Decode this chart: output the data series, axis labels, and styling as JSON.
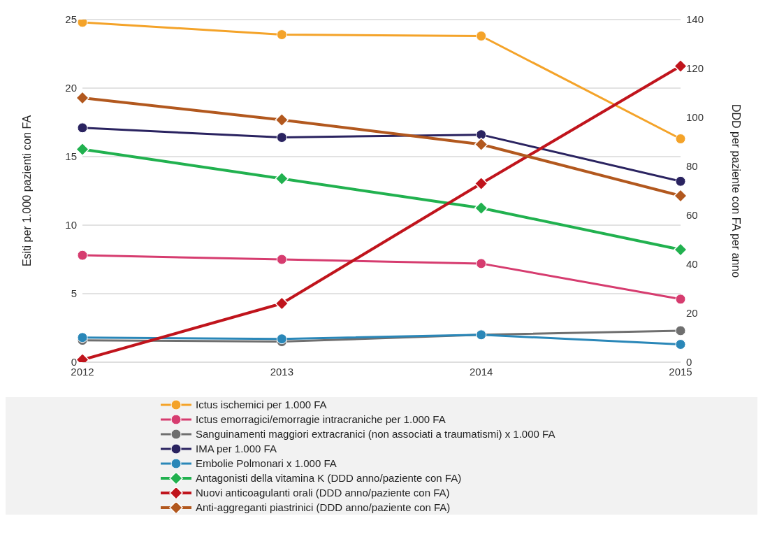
{
  "chart_data": {
    "type": "line",
    "ylabel": "Esiti per 1.000 pazienti con FA",
    "y2label": "DDD per paziente con FA per anno",
    "categories": [
      "2012",
      "2013",
      "2014",
      "2015"
    ],
    "ylim": [
      0,
      25
    ],
    "yticks": [
      0,
      5,
      10,
      15,
      20,
      25
    ],
    "y2lim": [
      0,
      140
    ],
    "y2ticks": [
      0,
      20,
      40,
      60,
      80,
      100,
      120,
      140
    ],
    "grid": "y",
    "legend": "bottom",
    "line_style": "solid",
    "series": [
      {
        "name": "Ictus ischemici per 1.000 FA",
        "color": "#f4a329",
        "marker": "circle",
        "values": [
          24.8,
          23.9,
          23.8,
          16.3
        ]
      },
      {
        "name": "Ictus emorragici/emorragie intracraniche per 1.000 FA",
        "color": "#d63c6f",
        "marker": "circle",
        "values": [
          7.8,
          7.5,
          7.2,
          4.6
        ]
      },
      {
        "name": "Sanguinamenti maggiori extracranici (non associati a traumatismi) x 1.000 FA",
        "color": "#6f6f6f",
        "marker": "circle",
        "values": [
          1.6,
          1.5,
          2.0,
          2.3
        ]
      },
      {
        "name": "IMA per 1.000 FA",
        "color": "#2a2360",
        "marker": "circle",
        "values": [
          17.1,
          16.4,
          16.6,
          13.2
        ]
      },
      {
        "name": "Embolie Polmonari x 1.000 FA",
        "color": "#2a87b8",
        "marker": "circle",
        "values": [
          1.8,
          1.7,
          2.0,
          1.3
        ]
      },
      {
        "name": "Antagonisti della vitamina K (DDD anno/paziente con FA)",
        "color": "#21b14f",
        "marker": "diamond",
        "axis": "y2",
        "values": [
          87,
          75,
          63,
          46
        ]
      },
      {
        "name": "Nuovi anticoagulanti orali (DDD anno/paziente con FA)",
        "color": "#c0141c",
        "marker": "diamond",
        "axis": "y2",
        "values": [
          1,
          24,
          73,
          121
        ]
      },
      {
        "name": "Anti-aggreganti piastrinici (DDD anno/paziente con FA)",
        "color": "#b2581e",
        "marker": "diamond",
        "axis": "y2",
        "values": [
          108,
          99,
          89,
          68
        ]
      }
    ]
  }
}
